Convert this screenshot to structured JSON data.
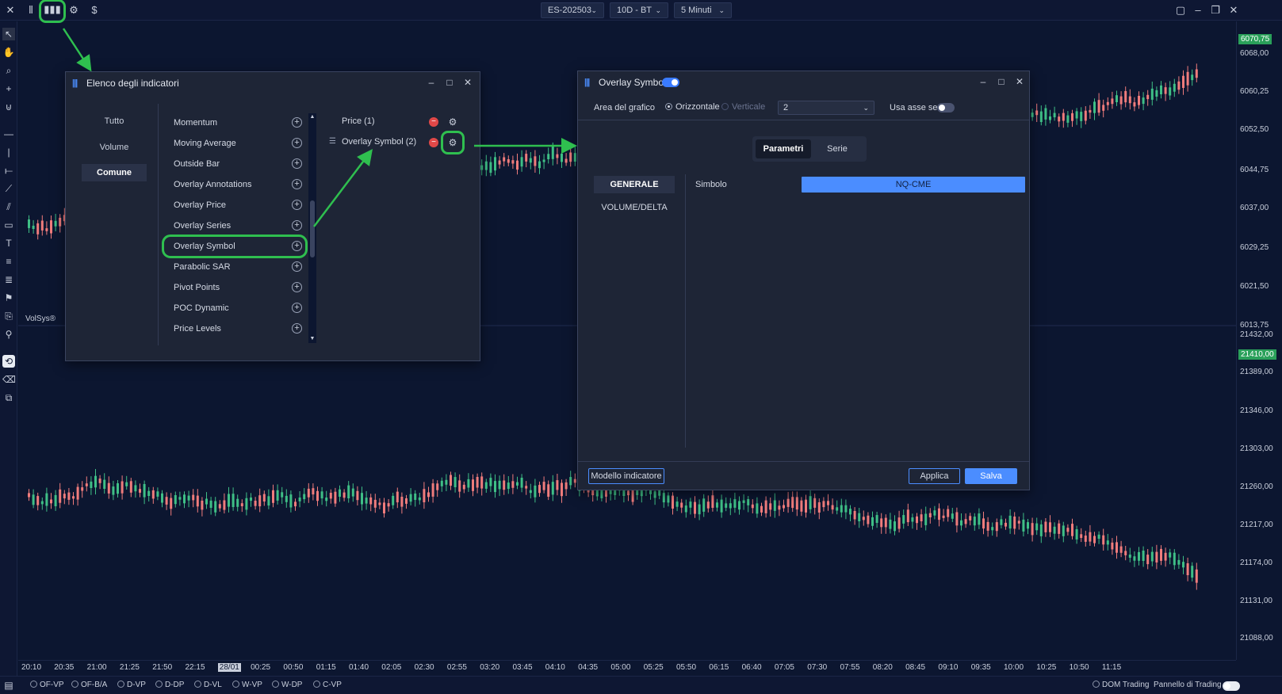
{
  "topbar": {
    "symbol": "ES-202503",
    "range": "10D - BT",
    "interval": "5 Minuti"
  },
  "price_axis_top": [
    "6070,75",
    "6068,00",
    "6060,25",
    "6052,50",
    "6044,75",
    "6037,00",
    "6029,25",
    "6021,50",
    "6013,75"
  ],
  "price_axis_bottom": [
    "21432,00",
    "21410,00",
    "21389,00",
    "21346,00",
    "21303,00",
    "21260,00",
    "21217,00",
    "21174,00",
    "21131,00",
    "21088,00"
  ],
  "time_axis": [
    "20:10",
    "20:35",
    "21:00",
    "21:25",
    "21:50",
    "22:15",
    "28/01",
    "00:25",
    "00:50",
    "01:15",
    "01:40",
    "02:05",
    "02:30",
    "02:55",
    "03:20",
    "03:45",
    "04:10",
    "04:35",
    "05:00",
    "05:25",
    "05:50",
    "06:15",
    "06:40",
    "07:05",
    "07:30",
    "07:55",
    "08:20",
    "08:45",
    "09:10",
    "09:35",
    "10:00",
    "10:25",
    "10:50",
    "11:15"
  ],
  "volsys_label": "VolSys®",
  "indicator_dialog": {
    "title": "Elenco degli indicatori",
    "categories": [
      "Tutto",
      "Volume",
      "Comune"
    ],
    "items": [
      "Momentum",
      "Moving Average",
      "Outside Bar",
      "Overlay Annotations",
      "Overlay Price",
      "Overlay Series",
      "Overlay Symbol",
      "Parabolic SAR",
      "Pivot Points",
      "POC Dynamic",
      "Price Levels"
    ],
    "added": [
      "Price (1)",
      "Overlay Symbol (2)"
    ]
  },
  "overlay_dialog": {
    "title": "Overlay Symbol",
    "area_label": "Area del grafico",
    "horizontal": "Orizzontale",
    "vertical": "Verticale",
    "select_value": "2",
    "sec_axis_label": "Usa asse sec.",
    "tab_params": "Parametri",
    "tab_series": "Serie",
    "nav_general": "GENERALE",
    "nav_volume": "VOLUME/DELTA",
    "symbol_label": "Simbolo",
    "symbol_value": "NQ-CME",
    "btn_template": "Modello indicatore",
    "btn_apply": "Applica",
    "btn_save": "Salva"
  },
  "bottombar": {
    "options": [
      "OF-VP",
      "OF-B/A",
      "D-VP",
      "D-DP",
      "D-VL",
      "W-VP",
      "W-DP",
      "C-VP"
    ],
    "dom": "DOM Trading",
    "panel": "Pannello di Trading"
  },
  "colors": {
    "bull": "#3fbf86",
    "bear": "#f07c7c",
    "accent": "#4b8dff",
    "highlight": "#2fbf4f"
  },
  "icons": [
    "close-icon",
    "candles-icon",
    "indicators-icon",
    "settings-icon",
    "dollar-icon"
  ]
}
